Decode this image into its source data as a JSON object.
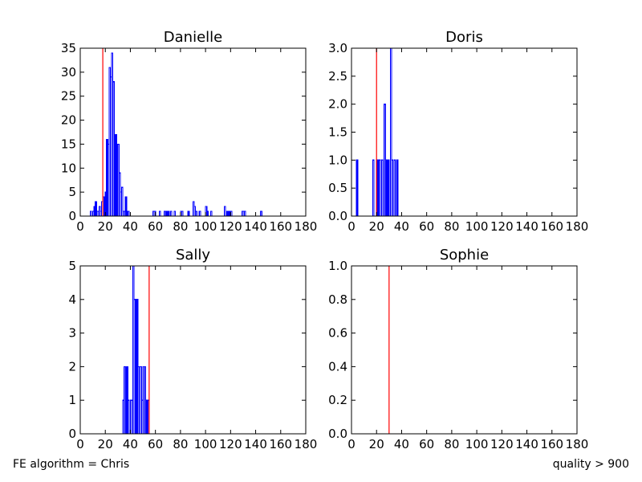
{
  "footer": {
    "left_text": "FE algorithm = Chris",
    "right_text": "quality > 900"
  },
  "chart_data": [
    {
      "type": "histogram",
      "title": "Danielle",
      "xlim": [
        0,
        180
      ],
      "ylim": [
        0,
        35
      ],
      "xticks": [
        0,
        20,
        40,
        60,
        80,
        100,
        120,
        140,
        160,
        180
      ],
      "yticks": [
        0,
        5,
        10,
        15,
        20,
        25,
        30,
        35
      ],
      "ytick_labels": [
        "0",
        "5",
        "10",
        "15",
        "20",
        "25",
        "30",
        "35"
      ],
      "bin_width": 1,
      "bins": [
        [
          8,
          1
        ],
        [
          10,
          1
        ],
        [
          11,
          2
        ],
        [
          12,
          3
        ],
        [
          13,
          1
        ],
        [
          14,
          1
        ],
        [
          15,
          2
        ],
        [
          16,
          1
        ],
        [
          17,
          3
        ],
        [
          18,
          4
        ],
        [
          19,
          2
        ],
        [
          20,
          5
        ],
        [
          21,
          16
        ],
        [
          22,
          15
        ],
        [
          23,
          31
        ],
        [
          24,
          29
        ],
        [
          25,
          34
        ],
        [
          26,
          28
        ],
        [
          27,
          12
        ],
        [
          28,
          17
        ],
        [
          29,
          14
        ],
        [
          30,
          15
        ],
        [
          31,
          9
        ],
        [
          32,
          5
        ],
        [
          33,
          6
        ],
        [
          34,
          1
        ],
        [
          35,
          1
        ],
        [
          36,
          4
        ],
        [
          37,
          1
        ],
        [
          38,
          1
        ],
        [
          58,
          1
        ],
        [
          59,
          1
        ],
        [
          63,
          1
        ],
        [
          67,
          1
        ],
        [
          69,
          1
        ],
        [
          70,
          1
        ],
        [
          72,
          1
        ],
        [
          75,
          1
        ],
        [
          80,
          1
        ],
        [
          81,
          1
        ],
        [
          86,
          1
        ],
        [
          90,
          3
        ],
        [
          91,
          2
        ],
        [
          92,
          1
        ],
        [
          95,
          1
        ],
        [
          100,
          2
        ],
        [
          101,
          1
        ],
        [
          104,
          1
        ],
        [
          115,
          2
        ],
        [
          117,
          1
        ],
        [
          118,
          1
        ],
        [
          120,
          1
        ],
        [
          129,
          1
        ],
        [
          130,
          1
        ],
        [
          131,
          1
        ],
        [
          144,
          1
        ]
      ],
      "series_color": "#0000ff",
      "vline": 18,
      "vline_color": "#ff0000",
      "legend": "none",
      "grid": false
    },
    {
      "type": "histogram",
      "title": "Doris",
      "xlim": [
        0,
        180
      ],
      "ylim": [
        0,
        3
      ],
      "xticks": [
        0,
        20,
        40,
        60,
        80,
        100,
        120,
        140,
        160,
        180
      ],
      "yticks": [
        0,
        0.5,
        1,
        1.5,
        2,
        2.5,
        3
      ],
      "ytick_labels": [
        "0.0",
        "0.5",
        "1.0",
        "1.5",
        "2.0",
        "2.5",
        "3.0"
      ],
      "bin_width": 1,
      "bins": [
        [
          4,
          1
        ],
        [
          17,
          1
        ],
        [
          20,
          1
        ],
        [
          22,
          1
        ],
        [
          24,
          1
        ],
        [
          26,
          2
        ],
        [
          28,
          1
        ],
        [
          29,
          1
        ],
        [
          31,
          3
        ],
        [
          32,
          1
        ],
        [
          34,
          1
        ],
        [
          36,
          1
        ]
      ],
      "series_color": "#0000ff",
      "vline": 20,
      "vline_color": "#ff0000",
      "legend": "none",
      "grid": false
    },
    {
      "type": "histogram",
      "title": "Sally",
      "xlim": [
        0,
        180
      ],
      "ylim": [
        0,
        5
      ],
      "xticks": [
        0,
        20,
        40,
        60,
        80,
        100,
        120,
        140,
        160,
        180
      ],
      "yticks": [
        0,
        1,
        2,
        3,
        4,
        5
      ],
      "ytick_labels": [
        "0",
        "1",
        "2",
        "3",
        "4",
        "5"
      ],
      "bin_width": 1,
      "bins": [
        [
          34,
          1
        ],
        [
          35,
          2
        ],
        [
          36,
          1
        ],
        [
          37,
          2
        ],
        [
          38,
          1
        ],
        [
          40,
          1
        ],
        [
          41,
          1
        ],
        [
          42,
          5
        ],
        [
          43,
          4
        ],
        [
          44,
          3
        ],
        [
          45,
          4
        ],
        [
          46,
          2
        ],
        [
          47,
          2
        ],
        [
          48,
          2
        ],
        [
          49,
          1
        ],
        [
          50,
          2
        ],
        [
          51,
          2
        ],
        [
          52,
          1
        ],
        [
          53,
          1
        ],
        [
          54,
          1
        ]
      ],
      "series_color": "#0000ff",
      "vline": 55,
      "vline_color": "#ff0000",
      "legend": "none",
      "grid": false
    },
    {
      "type": "histogram",
      "title": "Sophie",
      "xlim": [
        0,
        180
      ],
      "ylim": [
        0,
        1
      ],
      "xticks": [
        0,
        20,
        40,
        60,
        80,
        100,
        120,
        140,
        160,
        180
      ],
      "yticks": [
        0,
        0.2,
        0.4,
        0.6,
        0.8,
        1.0
      ],
      "ytick_labels": [
        "0.0",
        "0.2",
        "0.4",
        "0.6",
        "0.8",
        "1.0"
      ],
      "bin_width": 1,
      "bins": [],
      "series_color": "#0000ff",
      "vline": 30,
      "vline_color": "#ff0000",
      "legend": "none",
      "grid": false
    }
  ]
}
